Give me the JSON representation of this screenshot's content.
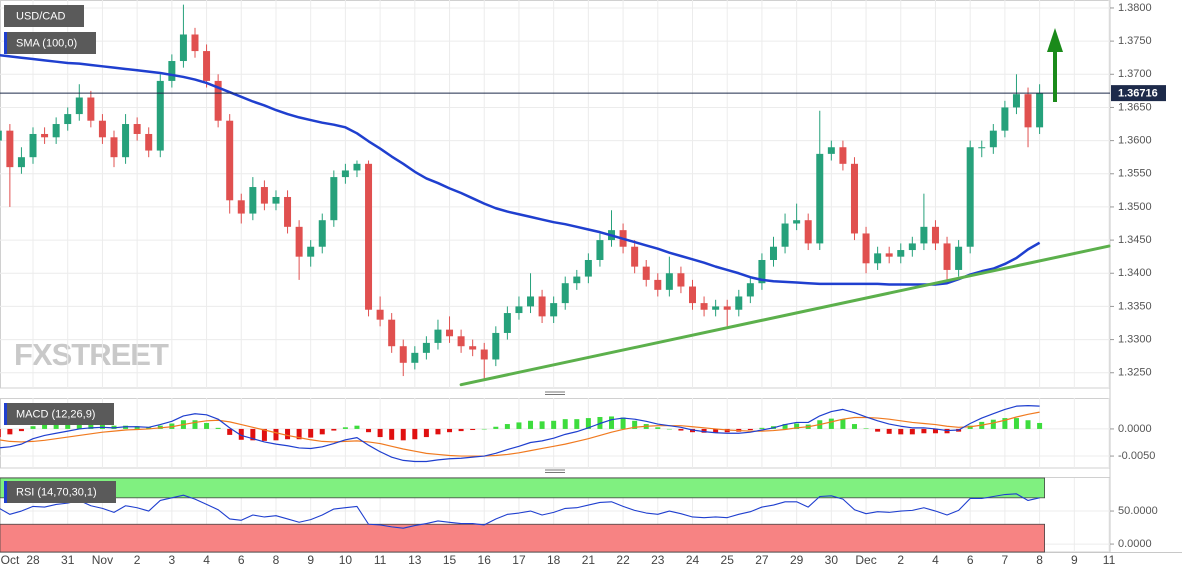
{
  "chart_data": {
    "type": "candlestick",
    "title": "USD/CAD",
    "watermark": "FXSTREET",
    "up_color": "#26a17b",
    "down_color": "#e0504f",
    "grid": true,
    "categories": [
      "Oct",
      null,
      null,
      "28",
      null,
      null,
      "31",
      null,
      null,
      "Nov",
      null,
      null,
      "2",
      null,
      null,
      "3",
      null,
      null,
      "4",
      null,
      null,
      "6",
      null,
      null,
      "8",
      null,
      null,
      "9",
      null,
      null,
      "10",
      null,
      null,
      "11",
      null,
      null,
      "13",
      null,
      null,
      "15",
      null,
      null,
      "16",
      null,
      null,
      "17",
      null,
      null,
      "18",
      null,
      null,
      "21",
      null,
      null,
      "22",
      null,
      null,
      "23",
      null,
      null,
      "24",
      null,
      null,
      "25",
      null,
      null,
      "27",
      null,
      null,
      "29",
      null,
      null,
      "30",
      null,
      null,
      "Dec",
      null,
      null,
      "2",
      null,
      null,
      "4",
      null,
      null,
      "6",
      null,
      null,
      "7",
      null,
      null,
      "8",
      null,
      null,
      "9",
      null,
      null,
      "11"
    ],
    "ohlc": [
      [
        1.36,
        1.3625,
        1.359,
        1.3615
      ],
      [
        1.3615,
        1.3625,
        1.35,
        1.356
      ],
      [
        1.356,
        1.359,
        1.355,
        1.3575
      ],
      [
        1.3575,
        1.362,
        1.3565,
        1.361
      ],
      [
        1.361,
        1.362,
        1.3595,
        1.3605
      ],
      [
        1.3605,
        1.3635,
        1.3595,
        1.3625
      ],
      [
        1.3625,
        1.365,
        1.3615,
        1.364
      ],
      [
        1.364,
        1.3685,
        1.363,
        1.3665
      ],
      [
        1.3665,
        1.3675,
        1.362,
        1.363
      ],
      [
        1.363,
        1.364,
        1.3595,
        1.3605
      ],
      [
        1.3605,
        1.3615,
        1.356,
        1.3575
      ],
      [
        1.3575,
        1.364,
        1.3565,
        1.3625
      ],
      [
        1.3625,
        1.3635,
        1.36,
        1.361
      ],
      [
        1.361,
        1.362,
        1.3575,
        1.3585
      ],
      [
        1.3585,
        1.37,
        1.3575,
        1.369
      ],
      [
        1.369,
        1.373,
        1.368,
        1.372
      ],
      [
        1.372,
        1.3805,
        1.371,
        1.376
      ],
      [
        1.376,
        1.377,
        1.3725,
        1.3735
      ],
      [
        1.3735,
        1.3745,
        1.368,
        1.369
      ],
      [
        1.369,
        1.37,
        1.362,
        1.363
      ],
      [
        1.363,
        1.364,
        1.349,
        1.351
      ],
      [
        1.351,
        1.352,
        1.3475,
        1.349
      ],
      [
        1.349,
        1.3545,
        1.348,
        1.353
      ],
      [
        1.353,
        1.354,
        1.3495,
        1.3505
      ],
      [
        1.3505,
        1.3525,
        1.3495,
        1.3515
      ],
      [
        1.3515,
        1.3525,
        1.346,
        1.347
      ],
      [
        1.347,
        1.348,
        1.339,
        1.3425
      ],
      [
        1.3425,
        1.345,
        1.341,
        1.344
      ],
      [
        1.344,
        1.349,
        1.343,
        1.348
      ],
      [
        1.348,
        1.3555,
        1.347,
        1.3545
      ],
      [
        1.3545,
        1.3565,
        1.3535,
        1.3555
      ],
      [
        1.3555,
        1.357,
        1.3545,
        1.3565
      ],
      [
        1.3565,
        1.357,
        1.3335,
        1.3345
      ],
      [
        1.3345,
        1.3365,
        1.332,
        1.333
      ],
      [
        1.333,
        1.334,
        1.328,
        1.329
      ],
      [
        1.329,
        1.33,
        1.3245,
        1.3265
      ],
      [
        1.3265,
        1.329,
        1.3255,
        1.328
      ],
      [
        1.328,
        1.3305,
        1.327,
        1.3295
      ],
      [
        1.3295,
        1.333,
        1.3285,
        1.3315
      ],
      [
        1.3315,
        1.3335,
        1.3295,
        1.3305
      ],
      [
        1.3305,
        1.3315,
        1.328,
        1.329
      ],
      [
        1.329,
        1.33,
        1.3275,
        1.3285
      ],
      [
        1.3285,
        1.3295,
        1.324,
        1.327
      ],
      [
        1.327,
        1.332,
        1.326,
        1.331
      ],
      [
        1.331,
        1.335,
        1.33,
        1.334
      ],
      [
        1.334,
        1.3365,
        1.333,
        1.335
      ],
      [
        1.335,
        1.34,
        1.334,
        1.3365
      ],
      [
        1.3365,
        1.3375,
        1.3325,
        1.3335
      ],
      [
        1.3335,
        1.3365,
        1.3325,
        1.3355
      ],
      [
        1.3355,
        1.3395,
        1.3345,
        1.3385
      ],
      [
        1.3385,
        1.3405,
        1.3375,
        1.3395
      ],
      [
        1.3395,
        1.343,
        1.3385,
        1.342
      ],
      [
        1.342,
        1.346,
        1.341,
        1.345
      ],
      [
        1.345,
        1.3495,
        1.344,
        1.3465
      ],
      [
        1.3465,
        1.3475,
        1.343,
        1.344
      ],
      [
        1.344,
        1.345,
        1.34,
        1.341
      ],
      [
        1.341,
        1.342,
        1.338,
        1.339
      ],
      [
        1.339,
        1.34,
        1.3365,
        1.3375
      ],
      [
        1.3375,
        1.3425,
        1.3365,
        1.34
      ],
      [
        1.34,
        1.341,
        1.337,
        1.338
      ],
      [
        1.338,
        1.339,
        1.3345,
        1.3355
      ],
      [
        1.3355,
        1.3365,
        1.3335,
        1.3345
      ],
      [
        1.3345,
        1.336,
        1.3335,
        1.335
      ],
      [
        1.335,
        1.336,
        1.332,
        1.3345
      ],
      [
        1.3345,
        1.3375,
        1.3335,
        1.3365
      ],
      [
        1.3365,
        1.3395,
        1.3355,
        1.3385
      ],
      [
        1.3385,
        1.343,
        1.3375,
        1.342
      ],
      [
        1.342,
        1.3455,
        1.341,
        1.344
      ],
      [
        1.344,
        1.349,
        1.343,
        1.3475
      ],
      [
        1.3475,
        1.3505,
        1.3465,
        1.348
      ],
      [
        1.348,
        1.349,
        1.3435,
        1.3445
      ],
      [
        1.3445,
        1.3645,
        1.3435,
        1.358
      ],
      [
        1.358,
        1.36,
        1.357,
        1.359
      ],
      [
        1.359,
        1.36,
        1.3555,
        1.3565
      ],
      [
        1.3565,
        1.3575,
        1.345,
        1.346
      ],
      [
        1.346,
        1.347,
        1.34,
        1.3415
      ],
      [
        1.3415,
        1.344,
        1.3405,
        1.343
      ],
      [
        1.343,
        1.344,
        1.3415,
        1.3425
      ],
      [
        1.3425,
        1.3445,
        1.3415,
        1.3435
      ],
      [
        1.3435,
        1.3455,
        1.3425,
        1.3445
      ],
      [
        1.3445,
        1.352,
        1.3435,
        1.347
      ],
      [
        1.347,
        1.348,
        1.3435,
        1.3445
      ],
      [
        1.3445,
        1.3455,
        1.339,
        1.3405
      ],
      [
        1.3405,
        1.345,
        1.3395,
        1.344
      ],
      [
        1.344,
        1.36,
        1.343,
        1.359
      ],
      [
        1.359,
        1.36,
        1.3575,
        1.359
      ],
      [
        1.359,
        1.3625,
        1.358,
        1.3615
      ],
      [
        1.3615,
        1.366,
        1.3605,
        1.365
      ],
      [
        1.365,
        1.37,
        1.364,
        1.367
      ],
      [
        1.367,
        1.368,
        1.359,
        1.362
      ],
      [
        1.362,
        1.3685,
        1.361,
        1.36716
      ],
      null,
      null,
      null,
      null,
      null,
      null
    ],
    "ylim": [
      1.3227,
      1.3812
    ],
    "yticks": [
      {
        "value": 1.38,
        "label": "1.3800"
      },
      {
        "value": 1.375,
        "label": "1.3750"
      },
      {
        "value": 1.37,
        "label": "1.3700"
      },
      {
        "value": 1.365,
        "label": "1.3650"
      },
      {
        "value": 1.36,
        "label": "1.3600"
      },
      {
        "value": 1.355,
        "label": "1.3550"
      },
      {
        "value": 1.35,
        "label": "1.3500"
      },
      {
        "value": 1.345,
        "label": "1.3450"
      },
      {
        "value": 1.34,
        "label": "1.3400"
      },
      {
        "value": 1.335,
        "label": "1.3350"
      },
      {
        "value": 1.33,
        "label": "1.3300"
      },
      {
        "value": 1.325,
        "label": "1.3250"
      }
    ],
    "last_price": 1.36716,
    "last_price_color": "#1d2a4a",
    "sma": {
      "name": "SMA (100,0)",
      "color": "#1f3fcf",
      "values": [
        1.3729,
        1.3727,
        1.3725,
        1.3723,
        1.3721,
        1.3719,
        1.3717,
        1.3716,
        1.3714,
        1.3712,
        1.371,
        1.3708,
        1.3706,
        1.3704,
        1.3702,
        1.3699,
        1.3696,
        1.3692,
        1.3687,
        1.368,
        1.3673,
        1.3666,
        1.3659,
        1.3653,
        1.3646,
        1.364,
        1.3635,
        1.3631,
        1.3627,
        1.3624,
        1.362,
        1.3611,
        1.3599,
        1.3588,
        1.3576,
        1.3565,
        1.3553,
        1.3543,
        1.3536,
        1.3528,
        1.3521,
        1.3513,
        1.3505,
        1.3498,
        1.3493,
        1.3489,
        1.3485,
        1.3481,
        1.3477,
        1.3474,
        1.347,
        1.3466,
        1.3462,
        1.3457,
        1.3452,
        1.3447,
        1.3442,
        1.3437,
        1.3431,
        1.3426,
        1.3421,
        1.3416,
        1.341,
        1.3405,
        1.34,
        1.3394,
        1.339,
        1.3388,
        1.3387,
        1.3386,
        1.3385,
        1.3384,
        1.3384,
        1.3384,
        1.3384,
        1.3384,
        1.3384,
        1.3383,
        1.3383,
        1.3383,
        1.3383,
        1.3383,
        1.3385,
        1.3391,
        1.3398,
        1.3403,
        1.3407,
        1.3414,
        1.3423,
        1.3436,
        1.3446,
        null,
        null,
        null,
        null,
        null,
        null
      ]
    },
    "trendline": {
      "color": "#5cb04c",
      "start": [
        40,
        1.3232
      ],
      "end": [
        96,
        1.3441
      ]
    },
    "macd": {
      "name": "MACD (12,26,9)",
      "macd_color": "#1f3fcf",
      "signal_color": "#f07a20",
      "up_color": "#3ddc3d",
      "down_color": "#e01010",
      "ylim": [
        -0.0072,
        0.0057
      ],
      "yticks": [
        {
          "value": 0,
          "label": "0.0000"
        },
        {
          "value": -0.005,
          "label": "-0.0050"
        }
      ],
      "macd": [
        -0.0035,
        -0.0033,
        -0.0028,
        -0.0018,
        -0.0012,
        -0.0008,
        -0.0004,
        0,
        0.0002,
        0.0003,
        0.0002,
        0.0004,
        0.0004,
        0.0003,
        0.0008,
        0.0014,
        0.0024,
        0.0028,
        0.0026,
        0.0018,
        0.0002,
        -0.0012,
        -0.0018,
        -0.0024,
        -0.0028,
        -0.0031,
        -0.0035,
        -0.0036,
        -0.0033,
        -0.0027,
        -0.002,
        -0.0016,
        -0.003,
        -0.0042,
        -0.0052,
        -0.0058,
        -0.006,
        -0.006,
        -0.0057,
        -0.0055,
        -0.0054,
        -0.0052,
        -0.005,
        -0.0045,
        -0.0038,
        -0.0032,
        -0.0025,
        -0.0022,
        -0.0017,
        -0.001,
        -0.0005,
        0.0002,
        0.001,
        0.0017,
        0.002,
        0.0018,
        0.0014,
        0.0009,
        0.0006,
        0.0003,
        -0.0002,
        -0.0005,
        -0.0007,
        -0.0008,
        -0.0008,
        -0.0006,
        -0.0002,
        0.0002,
        0.0008,
        0.0012,
        0.0012,
        0.0024,
        0.0032,
        0.0036,
        0.003,
        0.0022,
        0.0015,
        0.0009,
        0.0005,
        0.0002,
        0.0002,
        0,
        -0.0003,
        -0.0002,
        0.001,
        0.002,
        0.0028,
        0.0036,
        0.0042,
        0.0043,
        0.0042,
        null,
        null,
        null,
        null,
        null,
        null
      ],
      "signal": [
        -0.002,
        -0.0023,
        -0.0024,
        -0.0023,
        -0.0021,
        -0.0018,
        -0.0015,
        -0.0012,
        -0.0009,
        -0.0006,
        -0.0004,
        -0.0002,
        -0.0001,
        0,
        0.0002,
        0.0004,
        0.0008,
        0.0012,
        0.0015,
        0.0016,
        0.0013,
        0.0008,
        0.0003,
        -0.0002,
        -0.0007,
        -0.0012,
        -0.0016,
        -0.002,
        -0.0023,
        -0.0024,
        -0.0023,
        -0.0022,
        -0.0024,
        -0.0027,
        -0.0032,
        -0.0037,
        -0.0041,
        -0.0045,
        -0.0047,
        -0.0049,
        -0.005,
        -0.005,
        -0.005,
        -0.0049,
        -0.0047,
        -0.0044,
        -0.004,
        -0.0036,
        -0.0032,
        -0.0028,
        -0.0023,
        -0.0018,
        -0.0012,
        -0.0006,
        -0.0001,
        0.0003,
        0.0005,
        0.0006,
        0.0006,
        0.0006,
        0.0004,
        0.0002,
        0,
        -0.0002,
        -0.0003,
        -0.0004,
        -0.0004,
        -0.0003,
        -0.0001,
        0.0002,
        0.0004,
        0.0008,
        0.0013,
        0.0018,
        0.0021,
        0.0021,
        0.002,
        0.0018,
        0.0015,
        0.0012,
        0.001,
        0.0008,
        0.0005,
        0.0003,
        0.0004,
        0.0007,
        0.0011,
        0.0016,
        0.0022,
        0.0027,
        0.0031,
        null,
        null,
        null,
        null,
        null,
        null
      ],
      "histogram": [
        -0.0015,
        -0.001,
        -0.0004,
        0.0005,
        0.0009,
        0.001,
        0.0011,
        0.0012,
        0.0011,
        0.0009,
        0.0006,
        0.0006,
        0.0005,
        0.0003,
        0.0006,
        0.001,
        0.0016,
        0.0016,
        0.0011,
        0.0002,
        -0.0011,
        -0.002,
        -0.0021,
        -0.0022,
        -0.0021,
        -0.0019,
        -0.0019,
        -0.0016,
        -0.001,
        -0.0003,
        0.0003,
        0.0006,
        -0.0006,
        -0.0015,
        -0.002,
        -0.0021,
        -0.0019,
        -0.0015,
        -0.001,
        -0.0006,
        -0.0004,
        -0.0002,
        0,
        0.0004,
        0.0009,
        0.0012,
        0.0015,
        0.0014,
        0.0015,
        0.0018,
        0.0018,
        0.002,
        0.0022,
        0.0023,
        0.0021,
        0.0015,
        0.0009,
        0.0003,
        0,
        -0.0003,
        -0.0006,
        -0.0007,
        -0.0007,
        -0.0006,
        -0.0005,
        -0.0002,
        0.0002,
        0.0005,
        0.0009,
        0.001,
        0.0008,
        0.0016,
        0.0019,
        0.0018,
        0.0009,
        0.0001,
        -0.0005,
        -0.0009,
        -0.001,
        -0.001,
        -0.0008,
        -0.0008,
        -0.0008,
        -0.0005,
        0.0006,
        0.0013,
        0.0017,
        0.002,
        0.002,
        0.0016,
        0.0011,
        null,
        null,
        null,
        null,
        null,
        null
      ]
    },
    "rsi": {
      "name": "RSI (14,70,30,1)",
      "color": "#1f3fcf",
      "overbought": 70,
      "oversold": 30,
      "overbought_color": "#80f080",
      "oversold_color": "#f78383",
      "ylim": [
        -12,
        100
      ],
      "yticks": [
        {
          "value": 50,
          "label": "50.0000"
        },
        {
          "value": 0,
          "label": "0.0000"
        }
      ],
      "values": [
        55,
        45,
        50,
        57,
        56,
        60,
        62,
        66,
        58,
        54,
        48,
        58,
        55,
        50,
        66,
        70,
        74,
        68,
        60,
        52,
        38,
        36,
        44,
        41,
        43,
        38,
        33,
        37,
        44,
        53,
        55,
        57,
        30,
        29,
        26,
        24,
        28,
        31,
        35,
        33,
        31,
        31,
        29,
        38,
        45,
        47,
        50,
        44,
        48,
        54,
        55,
        59,
        63,
        64,
        57,
        51,
        47,
        45,
        50,
        46,
        41,
        40,
        41,
        40,
        45,
        49,
        56,
        59,
        64,
        64,
        56,
        72,
        73,
        68,
        52,
        46,
        49,
        48,
        50,
        51,
        55,
        50,
        44,
        51,
        69,
        69,
        72,
        75,
        76,
        66,
        70,
        null,
        null,
        null,
        null,
        null,
        null
      ]
    }
  }
}
